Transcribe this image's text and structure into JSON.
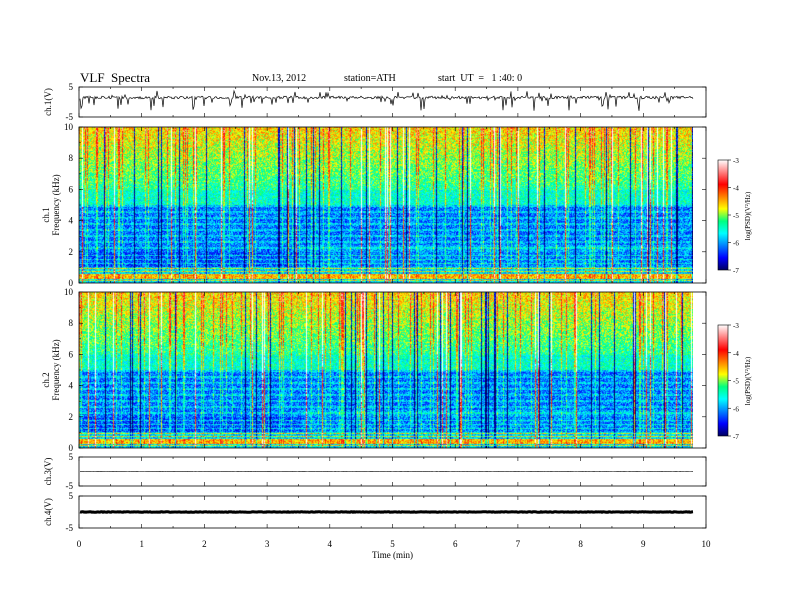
{
  "header": {
    "title": "VLF  Spectra",
    "date": "Nov.13, 2012",
    "station": "station=ATH",
    "start": "start  UT  =   1 :40: 0"
  },
  "colorbar": {
    "label": "log(PSD)(V²/Hz)",
    "ticks": [
      "-3",
      "-4",
      "-5",
      "-6",
      "-7"
    ],
    "stops": [
      "#000060",
      "#0000ff",
      "#0080ff",
      "#00ffff",
      "#00ff80",
      "#ffff00",
      "#ff8000",
      "#ff0000",
      "#ff8080",
      "#ffffff"
    ]
  },
  "chart_data": [
    {
      "type": "line",
      "panel": "ch1-waveform",
      "ylabel": "ch.1(V)",
      "ylim": [
        -5,
        5
      ],
      "yticks": [
        "5",
        "-5"
      ],
      "baseline_v": 1.5,
      "spike_min_v": -3,
      "xlim_min": [
        0,
        9.8
      ]
    },
    {
      "type": "heatmap",
      "panel": "ch1-spectrogram",
      "ylabel_channel": "ch.1",
      "ylabel": "Frequency  (kHz)",
      "ylim_khz": [
        0,
        10
      ],
      "yticks": [
        "0",
        "2",
        "4",
        "6",
        "8",
        "10"
      ],
      "value_range_logpsd": [
        -7,
        -3
      ],
      "xlim_min": [
        0,
        9.8
      ]
    },
    {
      "type": "heatmap",
      "panel": "ch2-spectrogram",
      "ylabel_channel": "ch.2",
      "ylabel": "Frequency  (kHz)",
      "ylim_khz": [
        0,
        10
      ],
      "yticks": [
        "0",
        "2",
        "4",
        "6",
        "8",
        "10"
      ],
      "value_range_logpsd": [
        -7,
        -3
      ],
      "xlim_min": [
        0,
        9.8
      ]
    },
    {
      "type": "line",
      "panel": "ch3-waveform",
      "ylabel": "ch.3(V)",
      "ylim": [
        -5,
        5
      ],
      "yticks": [
        "5",
        "-5"
      ],
      "baseline_v": 0,
      "xlim_min": [
        0,
        9.8
      ]
    },
    {
      "type": "line",
      "panel": "ch4-waveform",
      "ylabel": "ch.4(V)",
      "ylim": [
        -5,
        5
      ],
      "yticks": [
        "5",
        "-5"
      ],
      "baseline_v": 0,
      "xlim_min": [
        0,
        9.8
      ]
    }
  ],
  "xaxis": {
    "label": "Time  (min)",
    "range_min": [
      0,
      10
    ],
    "ticks": [
      "0",
      "1",
      "2",
      "3",
      "4",
      "5",
      "6",
      "7",
      "8",
      "9",
      "10"
    ]
  }
}
